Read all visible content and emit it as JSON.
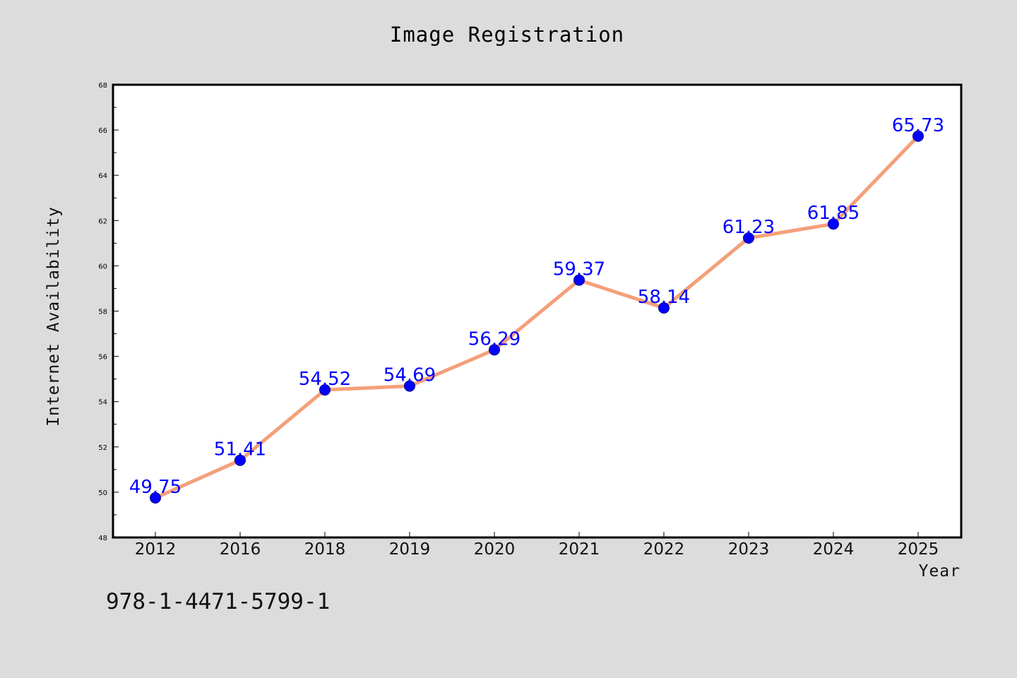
{
  "chart_data": {
    "type": "line",
    "title": "Image Registration",
    "xlabel": "Year",
    "ylabel": "Internet Availability",
    "categories": [
      "2012",
      "2016",
      "2018",
      "2019",
      "2020",
      "2021",
      "2022",
      "2023",
      "2024",
      "2025"
    ],
    "series": [
      {
        "values": [
          49.75,
          51.41,
          54.52,
          54.69,
          56.29,
          59.37,
          58.14,
          61.23,
          61.85,
          65.73
        ]
      }
    ],
    "ylim": [
      48,
      68
    ],
    "yticks": [
      48,
      50,
      52,
      54,
      56,
      58,
      60,
      62,
      64,
      66,
      68
    ],
    "grid": false,
    "legend": "none",
    "colors": {
      "line": "#f4a07a",
      "marker": "#0000ff",
      "data_label": "#0000ff"
    }
  },
  "annotation": "978-1-4471-5799-1"
}
